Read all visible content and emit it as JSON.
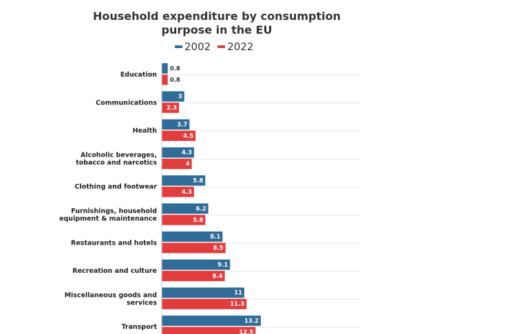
{
  "chart_data": {
    "type": "bar",
    "orientation": "horizontal",
    "title": "Household expenditure by consumption purpose in the EU",
    "xlabel": "",
    "ylabel": "",
    "grid": true,
    "legend_position": "top",
    "categories": [
      [
        "Education"
      ],
      [
        "Communications"
      ],
      [
        "Health"
      ],
      [
        "Alcoholic beverages,",
        "tobacco and narcotics"
      ],
      [
        "Clothing and footwear"
      ],
      [
        "Furnishings, household",
        "equipment & maintenance"
      ],
      [
        "Restaurants and hotels"
      ],
      [
        "Recreation and culture"
      ],
      [
        "Miscellaneous goods and",
        "services"
      ],
      [
        "Transport"
      ]
    ],
    "series": [
      {
        "name": "2002",
        "color": "#2e6d99",
        "values": [
          0.8,
          3,
          3.7,
          4.3,
          5.8,
          6.2,
          8.1,
          9.1,
          11,
          13.2
        ]
      },
      {
        "name": "2022",
        "color": "#e63b3b",
        "values": [
          0.8,
          2.3,
          4.5,
          4,
          4.3,
          5.8,
          8.5,
          8.4,
          11.3,
          12.5
        ]
      }
    ],
    "xlim": [
      0,
      26.5
    ]
  }
}
